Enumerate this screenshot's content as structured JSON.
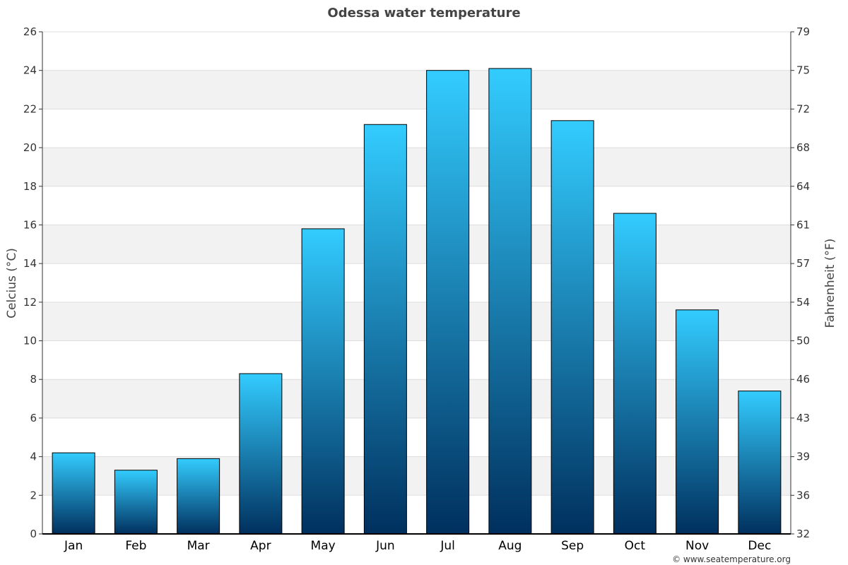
{
  "chart_data": {
    "type": "bar",
    "title": "Odessa water temperature",
    "ylabel": "Celcius (°C)",
    "y2label": "Fahrenheit (°F)",
    "categories": [
      "Jan",
      "Feb",
      "Mar",
      "Apr",
      "May",
      "Jun",
      "Jul",
      "Aug",
      "Sep",
      "Oct",
      "Nov",
      "Dec"
    ],
    "values": [
      4.2,
      3.3,
      3.9,
      8.3,
      15.8,
      21.2,
      24.0,
      24.1,
      21.4,
      16.6,
      11.6,
      7.4
    ],
    "ylim": [
      0,
      26
    ],
    "yticks": [
      "0",
      "2",
      "4",
      "6",
      "8",
      "10",
      "12",
      "14",
      "16",
      "18",
      "20",
      "22",
      "24",
      "26"
    ],
    "y2ticks": [
      "32",
      "36",
      "39",
      "43",
      "46",
      "50",
      "54",
      "57",
      "61",
      "64",
      "68",
      "72",
      "75",
      "79"
    ],
    "grid": true,
    "colors": {
      "bar_top": "#33ccff",
      "bar_bottom": "#00305e",
      "band": "#f2f2f2",
      "grid": "#dddddd"
    }
  },
  "credit": "© www.seatemperature.org"
}
